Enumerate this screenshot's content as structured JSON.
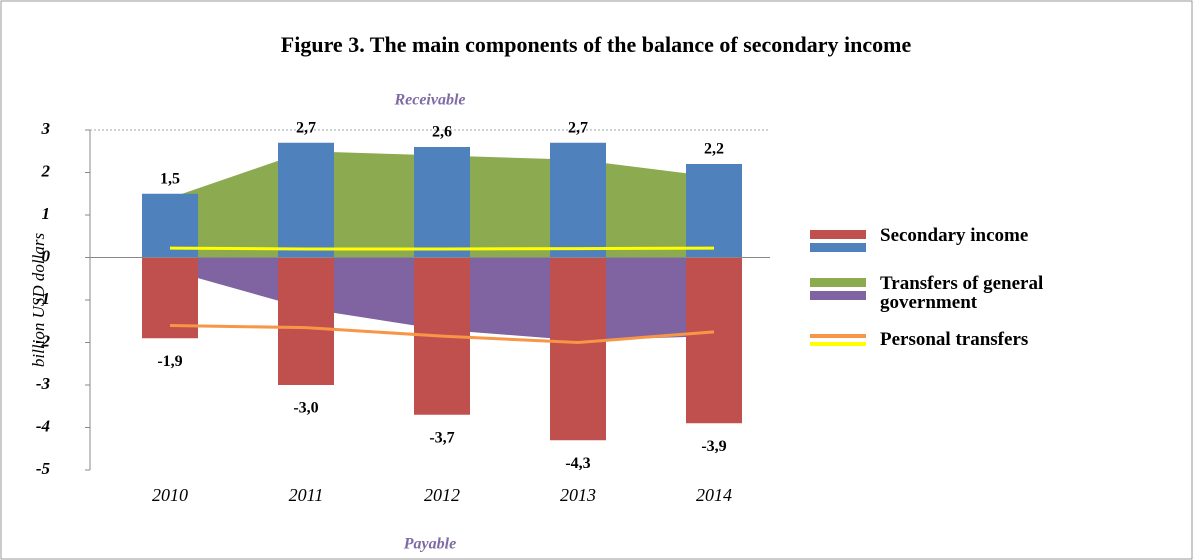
{
  "chart_data": {
    "type": "combo",
    "title": "Figure 3. The main components of the balance of secondary income",
    "y_label": "billion USD dollars",
    "receivable_label": "Receivable",
    "payable_label": "Payable",
    "categories": [
      "2010",
      "2011",
      "2012",
      "2013",
      "2014"
    ],
    "ylim": [
      -5,
      3
    ],
    "yticks": [
      -5,
      -4,
      -3,
      -2,
      -1,
      0,
      1,
      2,
      3
    ],
    "series": [
      {
        "name": "Secondary income",
        "type": "bar",
        "receivable": {
          "color": "#4f81bd",
          "values": [
            1.5,
            2.7,
            2.6,
            2.7,
            2.2
          ],
          "value_labels": [
            "1,5",
            "2,7",
            "2,6",
            "2,7",
            "2,2"
          ]
        },
        "payable": {
          "color": "#c0504d",
          "values": [
            -1.9,
            -3.0,
            -3.7,
            -4.3,
            -3.9
          ],
          "value_labels": [
            "-1,9",
            "-3,0",
            "-3,7",
            "-4,3",
            "-3,9"
          ]
        }
      },
      {
        "name": "Transfers of general government",
        "type": "area",
        "receivable": {
          "color": "#8caa4f",
          "values": [
            1.4,
            2.5,
            2.4,
            2.3,
            1.9
          ]
        },
        "payable": {
          "color": "#8064a2",
          "values": [
            -0.3,
            -1.2,
            -1.7,
            -1.95,
            -1.85
          ]
        }
      },
      {
        "name": "Personal transfers",
        "type": "line",
        "receivable": {
          "color": "#ffff00",
          "values": [
            0.22,
            0.2,
            0.2,
            0.21,
            0.22
          ]
        },
        "payable": {
          "color": "#f79646",
          "values": [
            -1.6,
            -1.65,
            -1.85,
            -2.0,
            -1.75
          ]
        }
      }
    ]
  }
}
